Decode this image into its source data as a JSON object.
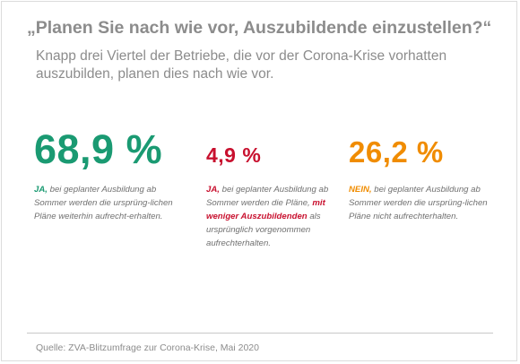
{
  "title": "„Planen Sie nach wie vor, Auszubildende einzustellen?“",
  "subtitle": "Knapp drei Viertel der Betriebe, die vor der Corona-Krise vorhatten auszubilden, planen dies nach wie vor.",
  "stats": [
    {
      "value": "68,9 %",
      "answer": "JA,",
      "text_1": " bei geplanter Ausbildung ab Sommer werden die ursprüng-lichen Pläne weiterhin aufrecht-erhalten."
    },
    {
      "value": "4,9 %",
      "answer": "JA,",
      "text_1": " bei geplanter Ausbildung ab Sommer  werden die Pläne, ",
      "highlight": "mit weniger Auszubildenden",
      "text_2": " als ursprünglich vorgenommen aufrechterhalten."
    },
    {
      "value": "26,2 %",
      "answer": "NEIN,",
      "text_1": " bei geplanter Ausbildung ab Sommer  werden die ursprüng-lichen Pläne nicht aufrechterhalten."
    }
  ],
  "source": "Quelle: ZVA-Blitzumfrage zur Corona-Krise, Mai 2020",
  "colors": {
    "green": "#1a9a72",
    "red": "#c8102e",
    "orange": "#f08c00",
    "gray_text": "#8c8c8c"
  }
}
